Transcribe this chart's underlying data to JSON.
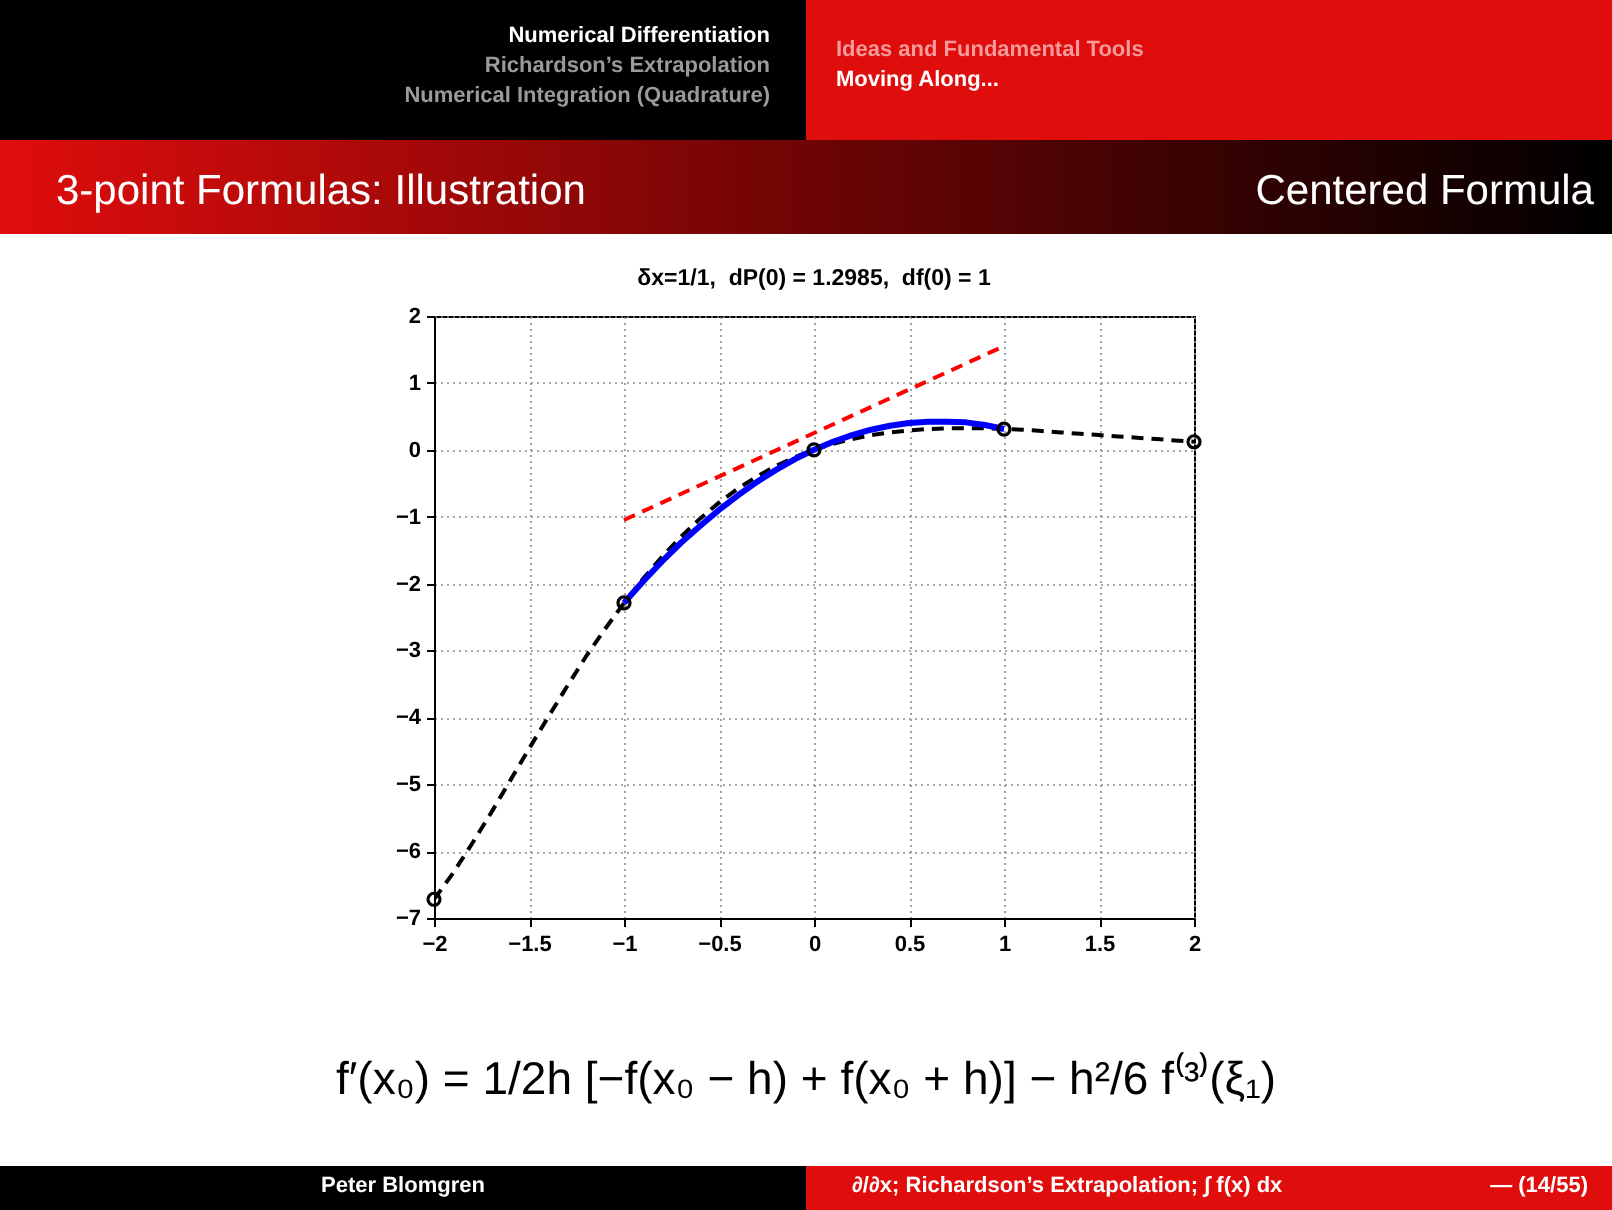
{
  "chart_data": {
    "type": "line",
    "title": "δx=1/1,  dP(0) = 1.2985,  df(0) = 1",
    "annotations": [
      "Numerical Differentiation",
      "Richardson’s Extrapolation",
      "Numerical Integration (Quadrature)",
      "Ideas and Fundamental Tools",
      "Moving Along...",
      "3-point Formulas: Illustration",
      "Centered Formula",
      "f′(x₀) = 1/2h [−f(x₀ − h) + f(x₀ + h)] − h²/6 f⁽³⁾(ξ₁)",
      "Peter Blomgren",
      "∂/∂x; Richardson’s Extrapolation; ∫ f(x) dx",
      "— (14/55)"
    ],
    "xlim": [
      -2,
      2
    ],
    "xticks": [
      -2,
      -1.5,
      -1,
      -0.5,
      0,
      0.5,
      1,
      1.5,
      2
    ],
    "ylim": [
      -7,
      2
    ],
    "yticks": [
      -7,
      -6,
      -5,
      -4,
      -3,
      -2,
      -1,
      0,
      1,
      2
    ],
    "grid": true,
    "series": [
      {
        "type": "line",
        "color": "#000000",
        "line_style": "dashed",
        "x": [
          -2,
          -1.9,
          -1.8,
          -1.7,
          -1.6,
          -1.5,
          -1.4,
          -1.3,
          -1.2,
          -1.1,
          -1,
          -0.9,
          -0.8,
          -0.7,
          -0.6,
          -0.5,
          -0.4,
          -0.3,
          -0.2,
          -0.1,
          0,
          0.1,
          0.2,
          0.3,
          0.4,
          0.5,
          0.6,
          0.7,
          0.8,
          0.9,
          1,
          1.1,
          1.2,
          1.3,
          1.4,
          1.5,
          1.6,
          1.7,
          1.8,
          1.9,
          2
        ],
        "values": [
          -6.72,
          -6.33,
          -5.89,
          -5.43,
          -4.95,
          -4.47,
          -4.0,
          -3.54,
          -3.09,
          -2.68,
          -2.29,
          -1.93,
          -1.6,
          -1.3,
          -1.03,
          -0.79,
          -0.58,
          -0.4,
          -0.24,
          -0.11,
          0,
          0.09,
          0.16,
          0.22,
          0.26,
          0.29,
          0.31,
          0.32,
          0.32,
          0.32,
          0.31,
          0.3,
          0.28,
          0.26,
          0.24,
          0.22,
          0.2,
          0.18,
          0.16,
          0.14,
          0.12
        ]
      },
      {
        "type": "line",
        "color": "#ff0000",
        "line_style": "dashed",
        "x": [
          -1,
          1
        ],
        "values": [
          -1.05,
          1.55
        ]
      },
      {
        "type": "line",
        "color": "#0000ff",
        "line_style": "solid",
        "x": [
          -1,
          -0.9,
          -0.8,
          -0.7,
          -0.6,
          -0.5,
          -0.4,
          -0.3,
          -0.2,
          -0.1,
          0,
          0.1,
          0.2,
          0.3,
          0.4,
          0.5,
          0.6,
          0.7,
          0.8,
          0.9,
          1
        ],
        "values": [
          -2.29,
          -1.97,
          -1.67,
          -1.39,
          -1.14,
          -0.9,
          -0.68,
          -0.48,
          -0.3,
          -0.14,
          0,
          0.12,
          0.22,
          0.3,
          0.36,
          0.4,
          0.42,
          0.42,
          0.41,
          0.37,
          0.31
        ]
      },
      {
        "type": "scatter",
        "color": "#000000",
        "marker": "circle",
        "x": [
          -2,
          -1,
          0,
          1,
          2
        ],
        "values": [
          -6.72,
          -2.29,
          0,
          0.31,
          0.12
        ]
      }
    ]
  }
}
